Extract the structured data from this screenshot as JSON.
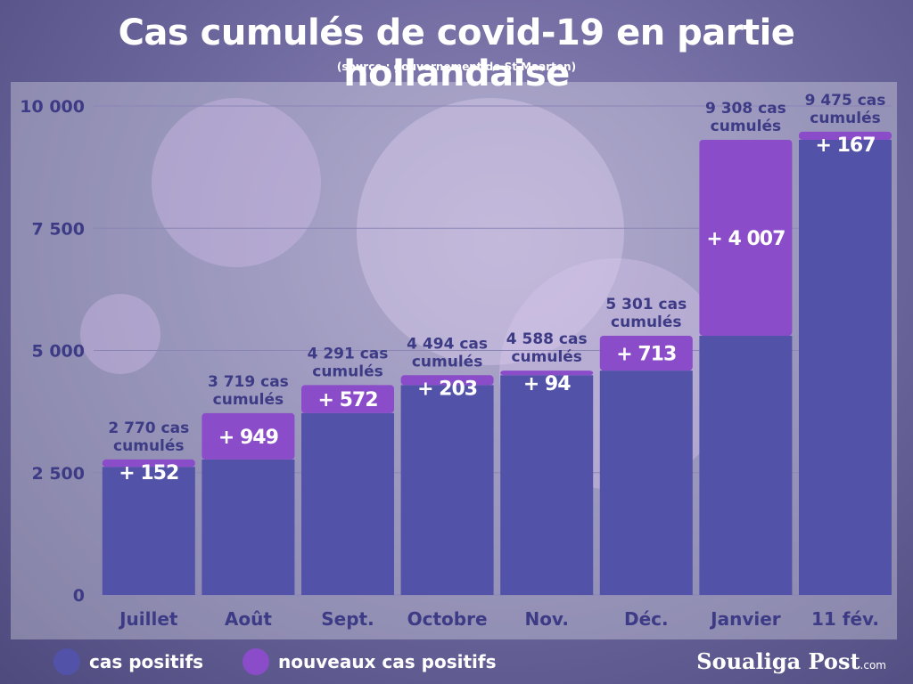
{
  "chart_data": {
    "type": "bar",
    "stacked": true,
    "title": "Cas cumulés de covid-19 en partie hollandaise",
    "subtitle": "(source : gouvernement de St Maarten)",
    "categories": [
      "Juillet",
      "Août",
      "Sept.",
      "Octobre",
      "Nov.",
      "Déc.",
      "Janvier",
      "11 fév."
    ],
    "series": [
      {
        "name": "cas positifs",
        "color": "#5252a8",
        "values": [
          2618,
          2770,
          3719,
          4291,
          4494,
          4588,
          5301,
          9308
        ]
      },
      {
        "name": "nouveaux cas positifs",
        "color": "#8a4cc8",
        "values": [
          152,
          949,
          572,
          203,
          94,
          713,
          4007,
          167
        ]
      }
    ],
    "increment_labels": [
      "+ 152",
      "+ 949",
      "+ 572",
      "+ 203",
      "+ 94",
      "+ 713",
      "+ 4 007",
      "+ 167"
    ],
    "total_labels": [
      [
        "2 770 cas",
        "cumulés"
      ],
      [
        "3  719 cas",
        "cumulés"
      ],
      [
        "4 291 cas",
        "cumulés"
      ],
      [
        "4 494 cas",
        "cumulés"
      ],
      [
        "4 588 cas",
        "cumulés"
      ],
      [
        "5 301 cas",
        "cumulés"
      ],
      [
        "9 308 cas",
        "cumulés"
      ],
      [
        "9 475 cas",
        "cumulés"
      ]
    ],
    "yticks": [
      0,
      2500,
      5000,
      7500,
      10000
    ],
    "ytick_labels": [
      "0",
      "2 500",
      "5 000",
      "7 500",
      "10 000"
    ],
    "ylim": [
      0,
      10000
    ],
    "grid": true,
    "legend_position": "bottom-left"
  },
  "legend": {
    "items": [
      {
        "label": "cas positifs",
        "color": "#5252a8"
      },
      {
        "label": "nouveaux cas positifs",
        "color": "#8a4cc8"
      }
    ]
  },
  "brand": {
    "name": "Soualiga Post",
    "suffix": ".com"
  }
}
